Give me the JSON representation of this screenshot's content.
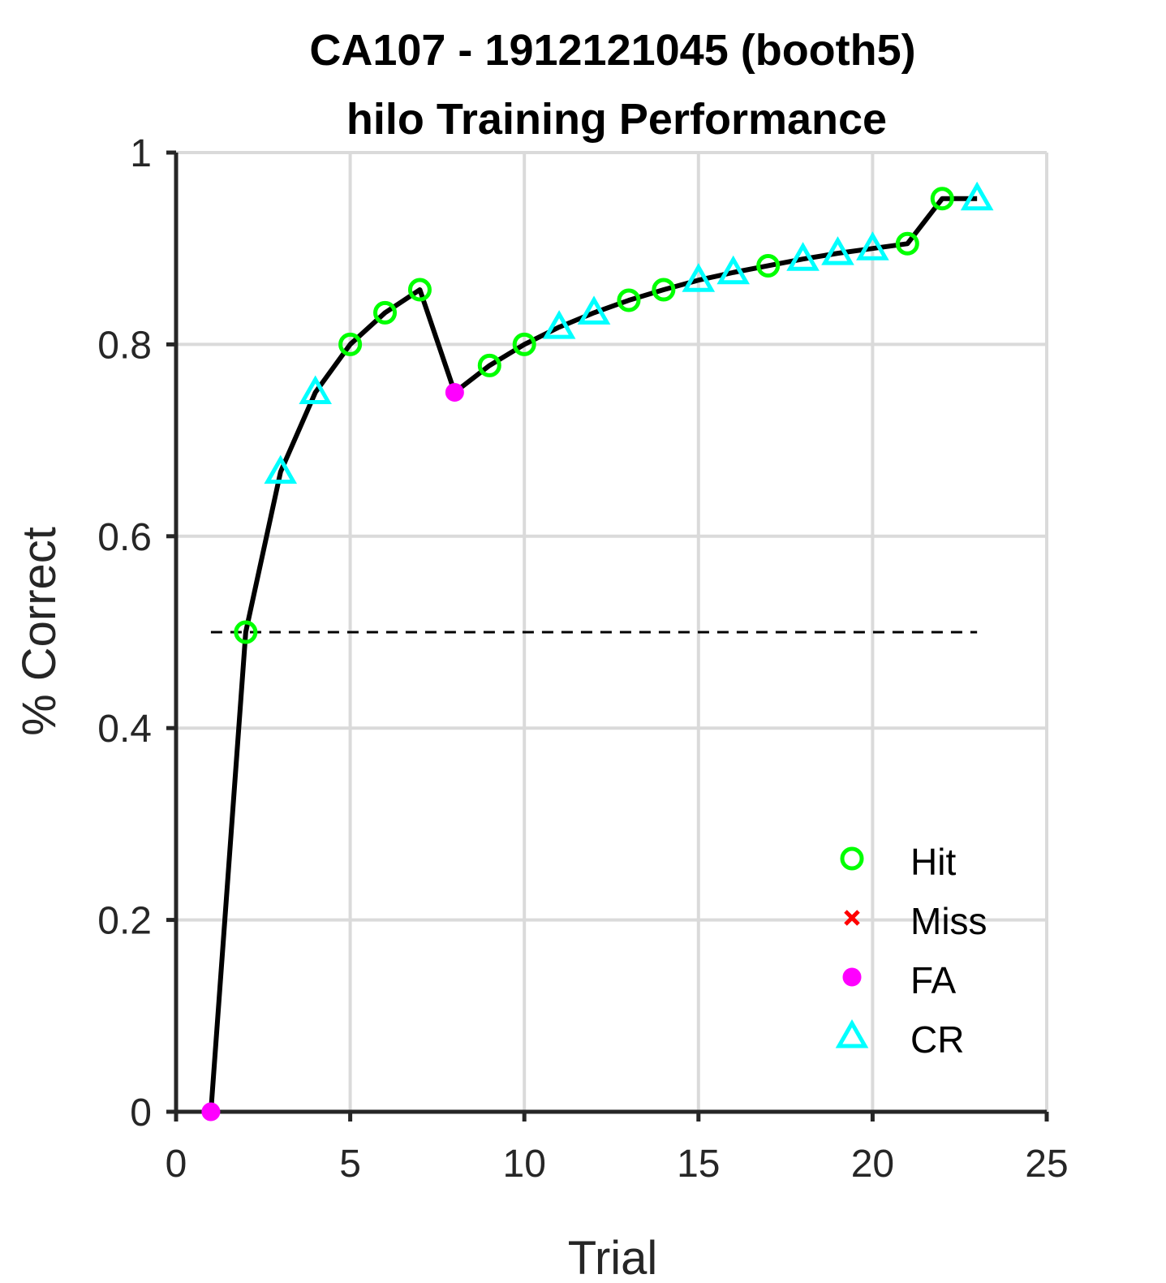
{
  "chart_data": {
    "type": "line",
    "title": "CA107 - 1912121045 (booth5)",
    "subtitle": "hilo Training Performance",
    "xlabel": "Trial",
    "ylabel": "% Correct",
    "xlim": [
      0,
      25
    ],
    "ylim": [
      0,
      1
    ],
    "xticks": [
      "0",
      "5",
      "10",
      "15",
      "20",
      "25"
    ],
    "yticks": [
      "0",
      "0.2",
      "0.4",
      "0.6",
      "0.8",
      "1"
    ],
    "grid": true,
    "legend_position": "bottom-right",
    "chance_level": 0.5,
    "line_color": "#000000",
    "series": [
      {
        "x": [
          1,
          2,
          3,
          4,
          5,
          6,
          7,
          8,
          9,
          10,
          11,
          12,
          13,
          14,
          15,
          16,
          17,
          18,
          19,
          20,
          21,
          22,
          23
        ],
        "y": [
          0,
          0.5,
          0.667,
          0.75,
          0.8,
          0.833,
          0.857,
          0.75,
          0.778,
          0.8,
          0.818,
          0.833,
          0.846,
          0.857,
          0.867,
          0.875,
          0.882,
          0.889,
          0.895,
          0.9,
          0.905,
          0.952,
          0.952
        ],
        "outcome": [
          "FA",
          "Hit",
          "CR",
          "CR",
          "Hit",
          "Hit",
          "Hit",
          "FA",
          "Hit",
          "Hit",
          "CR",
          "CR",
          "Hit",
          "Hit",
          "CR",
          "CR",
          "Hit",
          "CR",
          "CR",
          "CR",
          "Hit",
          "Hit",
          "CR"
        ]
      }
    ],
    "legend": [
      {
        "label": "Hit",
        "marker": "circle",
        "color": "#00ff00"
      },
      {
        "label": "Miss",
        "marker": "x",
        "color": "#ff0000"
      },
      {
        "label": "FA",
        "marker": "dot",
        "color": "#ff00ff"
      },
      {
        "label": "CR",
        "marker": "triangle",
        "color": "#00ffff"
      }
    ]
  }
}
